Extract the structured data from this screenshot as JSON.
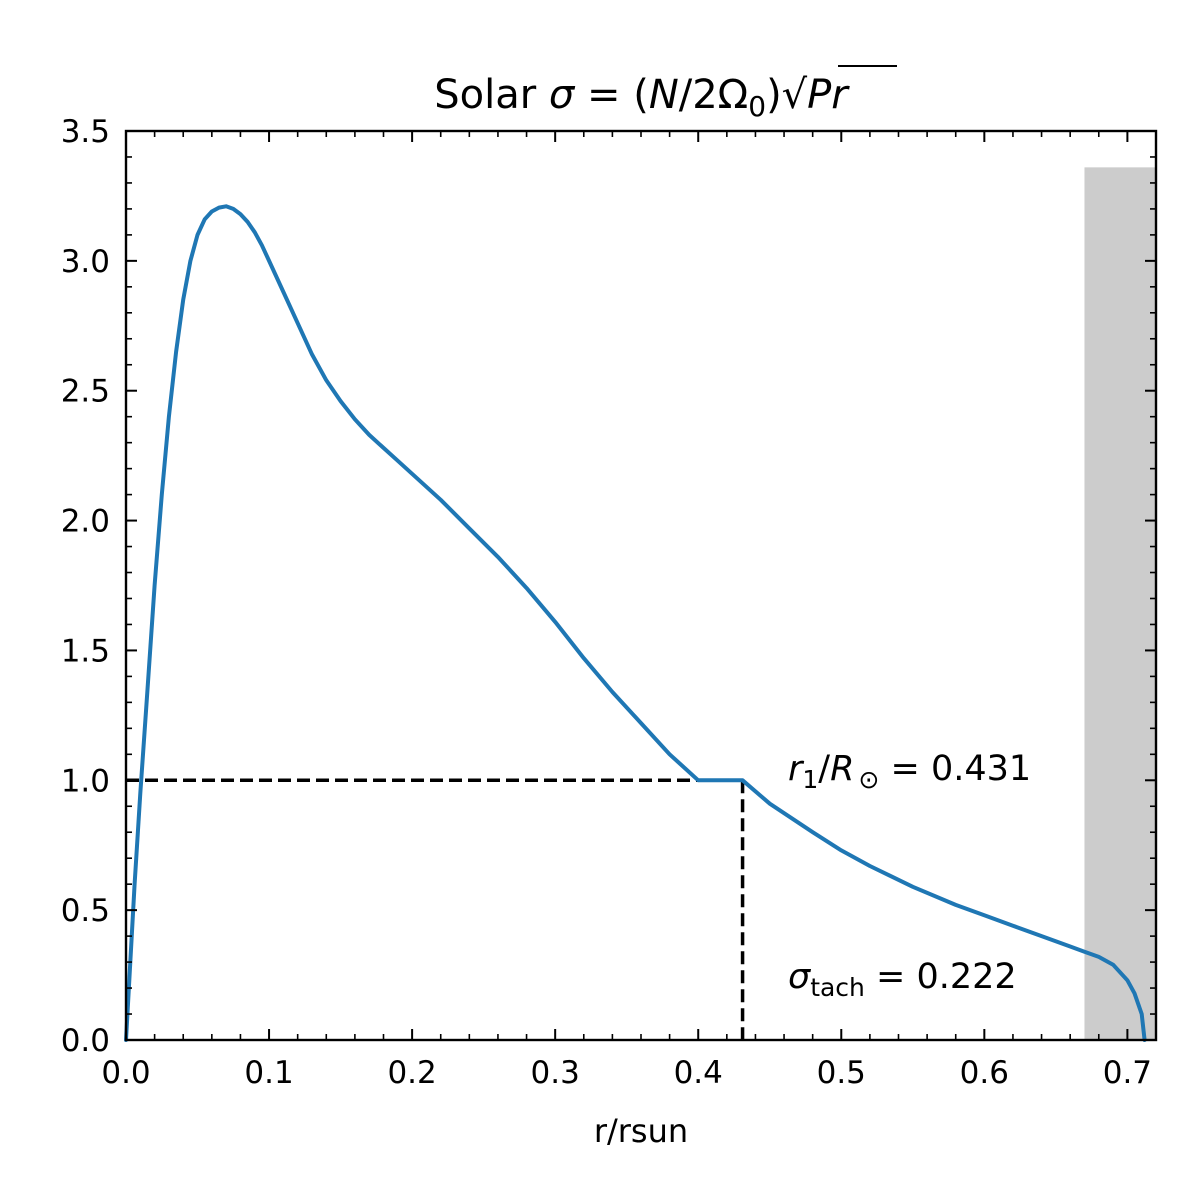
{
  "chart_data": {
    "type": "line",
    "title": {
      "prefix": "Solar ",
      "sigma": "σ",
      "eq": " = (",
      "N": "N",
      "slash": "/2Ω",
      "sub0": "0",
      "close": ")",
      "sqrt": "√",
      "Pr": "Pr"
    },
    "xlabel": "r/rsun",
    "ylabel": "",
    "xlim": [
      0.0,
      0.72
    ],
    "ylim": [
      0.0,
      3.5
    ],
    "x_ticks": [
      0.0,
      0.1,
      0.2,
      0.3,
      0.4,
      0.5,
      0.6,
      0.7
    ],
    "x_tick_labels": [
      "0.0",
      "0.1",
      "0.2",
      "0.3",
      "0.4",
      "0.5",
      "0.6",
      "0.7"
    ],
    "y_ticks": [
      0.0,
      0.5,
      1.0,
      1.5,
      2.0,
      2.5,
      3.0,
      3.5
    ],
    "y_tick_labels": [
      "0.0",
      "0.5",
      "1.0",
      "1.5",
      "2.0",
      "2.5",
      "3.0",
      "3.5"
    ],
    "grid": false,
    "colors": {
      "line": "#1f77b4",
      "shade": "#cccccc",
      "guide": "#000000"
    },
    "series": [
      {
        "x": [
          0.0,
          0.003,
          0.006,
          0.01,
          0.015,
          0.02,
          0.025,
          0.03,
          0.035,
          0.04,
          0.045,
          0.05,
          0.055,
          0.06,
          0.065,
          0.07,
          0.075,
          0.08,
          0.085,
          0.09,
          0.095,
          0.1,
          0.11,
          0.12,
          0.13,
          0.14,
          0.15,
          0.16,
          0.17,
          0.18,
          0.19,
          0.2,
          0.22,
          0.24,
          0.26,
          0.28,
          0.3,
          0.32,
          0.34,
          0.36,
          0.38,
          0.4,
          0.42,
          0.431,
          0.45,
          0.48,
          0.5,
          0.52,
          0.55,
          0.58,
          0.6,
          0.62,
          0.64,
          0.66,
          0.67,
          0.68,
          0.69,
          0.7,
          0.705,
          0.71,
          0.712
        ],
        "y": [
          0.0,
          0.3,
          0.6,
          0.95,
          1.35,
          1.75,
          2.1,
          2.4,
          2.65,
          2.85,
          3.0,
          3.1,
          3.16,
          3.19,
          3.205,
          3.21,
          3.2,
          3.18,
          3.15,
          3.11,
          3.06,
          3.0,
          2.88,
          2.76,
          2.64,
          2.54,
          2.46,
          2.39,
          2.33,
          2.28,
          2.23,
          2.18,
          2.08,
          1.97,
          1.86,
          1.74,
          1.61,
          1.47,
          1.34,
          1.22,
          1.1,
          1.0,
          1.0,
          1.0,
          0.91,
          0.8,
          0.73,
          0.67,
          0.59,
          0.52,
          0.48,
          0.44,
          0.4,
          0.36,
          0.34,
          0.32,
          0.29,
          0.23,
          0.18,
          0.1,
          0.0
        ]
      }
    ],
    "shaded_region": {
      "x0": 0.67,
      "x1": 0.72,
      "y_top": 3.36
    },
    "guides": {
      "r1": 0.431,
      "sigma_level": 1.0
    },
    "annotations": {
      "r1": {
        "r": "r",
        "sub1": "1",
        "slash": "/",
        "R": "R",
        "sunsym": "⊙",
        "value": " = 0.431"
      },
      "tach": {
        "sigma": "σ",
        "sub": "tach",
        "value": " = 0.222"
      }
    }
  }
}
